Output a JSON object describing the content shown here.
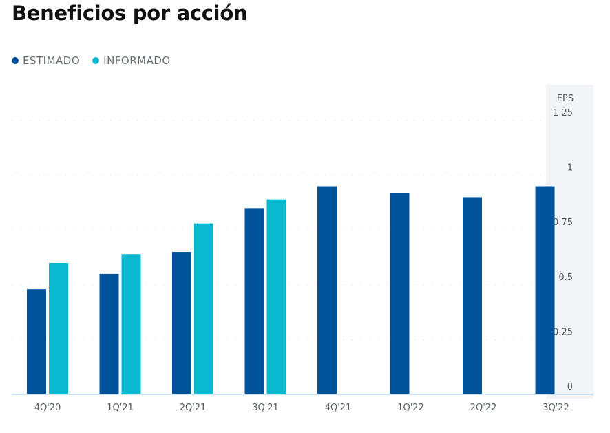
{
  "title": "Beneficios por acción",
  "legend": [
    {
      "label": "ESTIMADO",
      "color": "#00529b"
    },
    {
      "label": "INFORMADO",
      "color": "#0ab9cf"
    }
  ],
  "chart_data": {
    "type": "bar",
    "title": "Beneficios por acción",
    "ylabel": "EPS",
    "xlabel": "",
    "ylim": [
      0,
      1.25
    ],
    "yticks": [
      {
        "value": 0,
        "label": "0"
      },
      {
        "value": 0.25,
        "label": "0.25"
      },
      {
        "value": 0.5,
        "label": "0.5"
      },
      {
        "value": 0.75,
        "label": "0.75"
      },
      {
        "value": 1,
        "label": "1"
      },
      {
        "value": 1.25,
        "label": "1.25"
      }
    ],
    "categories": [
      "4Q'20",
      "1Q'21",
      "2Q'21",
      "3Q'21",
      "4Q'21",
      "1Q'22",
      "2Q'22",
      "3Q'22"
    ],
    "series": [
      {
        "name": "ESTIMADO",
        "color": "#00529b",
        "values": [
          0.48,
          0.55,
          0.65,
          0.85,
          0.95,
          0.92,
          0.9,
          0.95
        ]
      },
      {
        "name": "INFORMADO",
        "color": "#0ab9cf",
        "values": [
          0.6,
          0.64,
          0.78,
          0.89,
          null,
          null,
          null,
          null
        ]
      }
    ],
    "grid": true,
    "legend_position": "top-left"
  }
}
